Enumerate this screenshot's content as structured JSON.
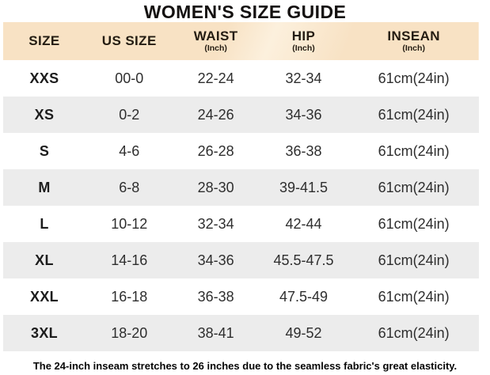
{
  "title": "WOMEN'S SIZE GUIDE",
  "table": {
    "columns": [
      {
        "label": "SIZE",
        "sub": ""
      },
      {
        "label": "US SIZE",
        "sub": ""
      },
      {
        "label": "WAIST",
        "sub": "(Inch)"
      },
      {
        "label": "HIP",
        "sub": "(Inch)"
      },
      {
        "label": "INSEAN",
        "sub": "(Inch)"
      }
    ],
    "rows": [
      [
        "XXS",
        "00-0",
        "22-24",
        "32-34",
        "61cm(24in)"
      ],
      [
        "XS",
        "0-2",
        "24-26",
        "34-36",
        "61cm(24in)"
      ],
      [
        "S",
        "4-6",
        "26-28",
        "36-38",
        "61cm(24in)"
      ],
      [
        "M",
        "6-8",
        "28-30",
        "39-41.5",
        "61cm(24in)"
      ],
      [
        "L",
        "10-12",
        "32-34",
        "42-44",
        "61cm(24in)"
      ],
      [
        "XL",
        "14-16",
        "34-36",
        "45.5-47.5",
        "61cm(24in)"
      ],
      [
        "XXL",
        "16-18",
        "36-38",
        "47.5-49",
        "61cm(24in)"
      ],
      [
        "3XL",
        "18-20",
        "38-41",
        "49-52",
        "61cm(24in)"
      ]
    ]
  },
  "footer_note": "The 24-inch inseam stretches to 26 inches due to the seamless fabric's great elasticity.",
  "colors": {
    "header_bg": "#f8e2c4",
    "row_bg": "#ffffff",
    "row_alt_bg": "#ececec",
    "title_text": "#141110",
    "cell_text": "#2e2e2e",
    "footer_text": "#050505"
  }
}
